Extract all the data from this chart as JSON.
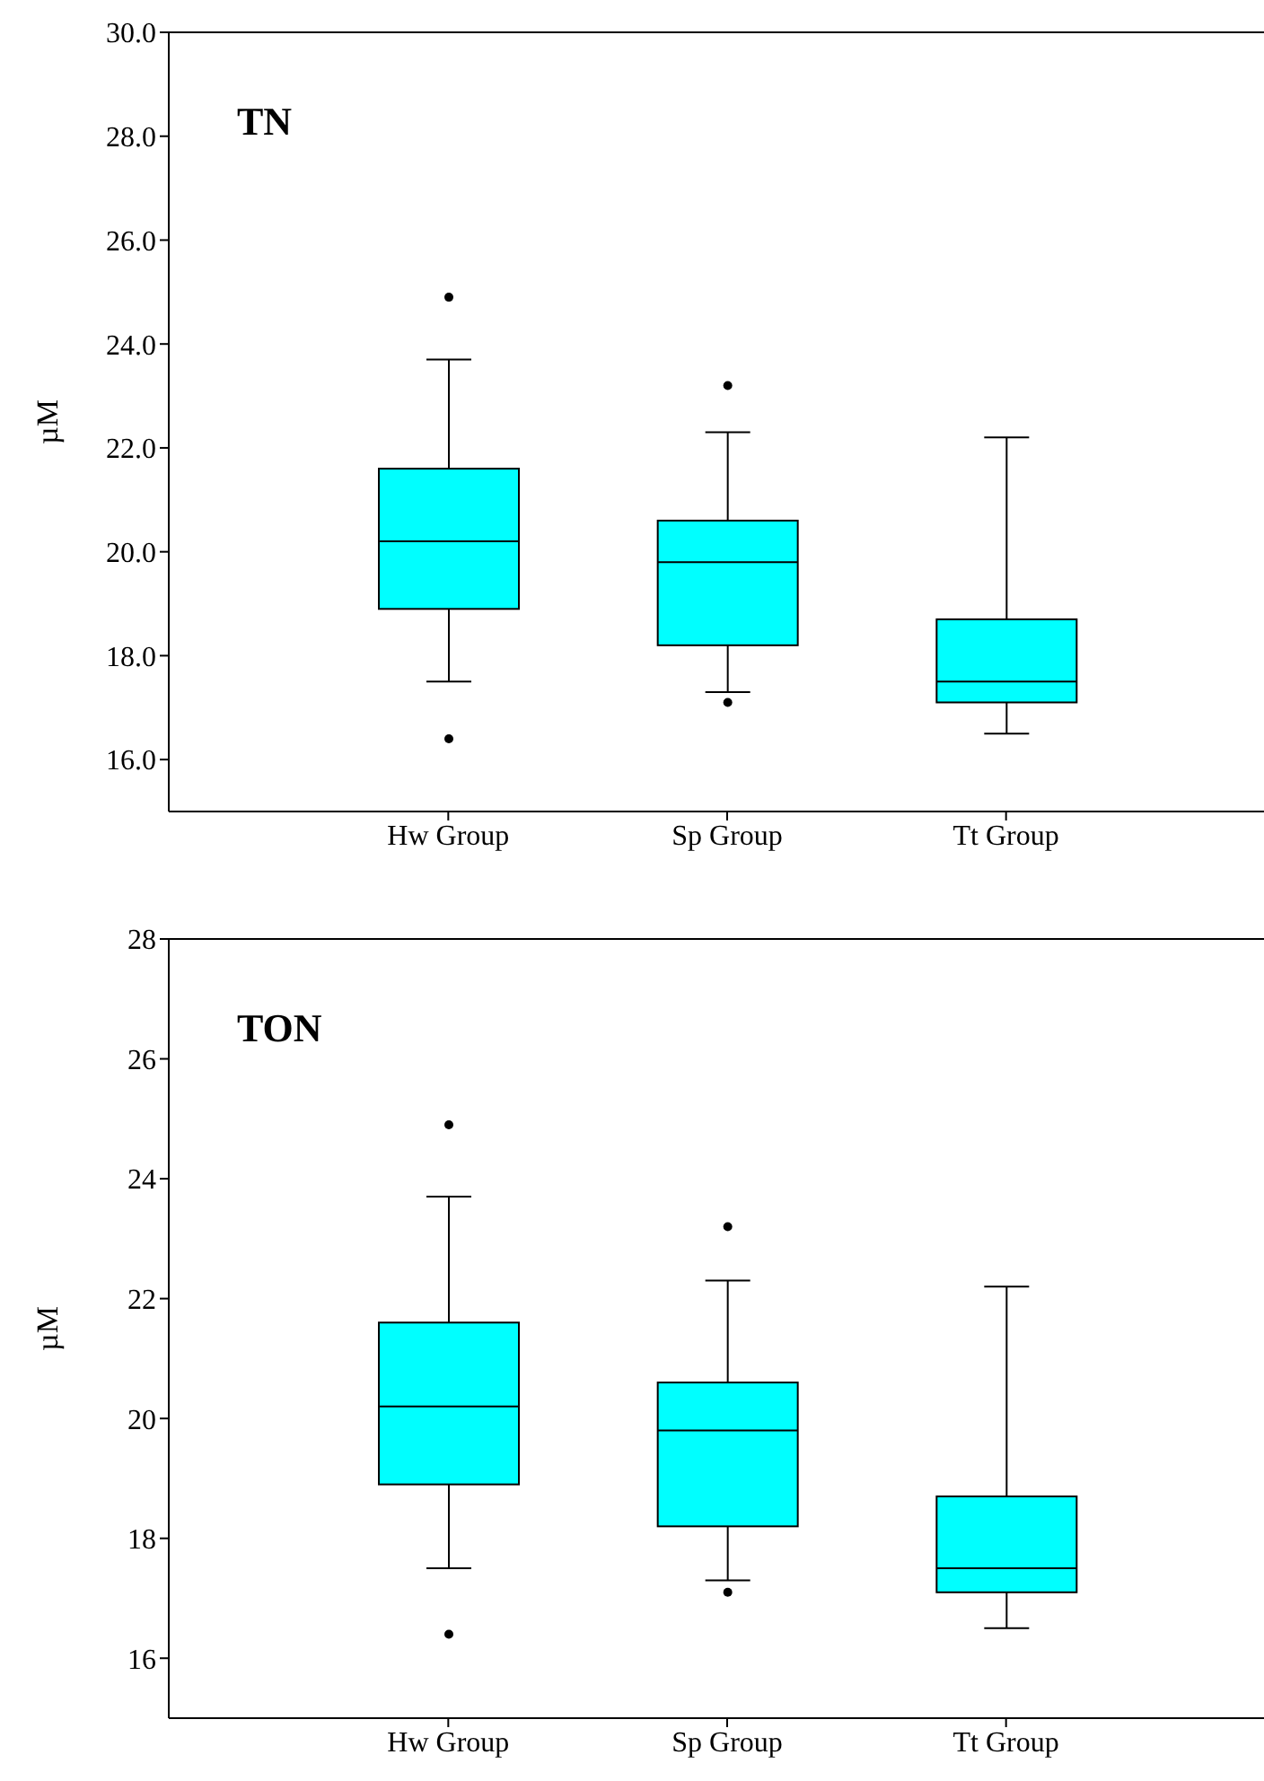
{
  "chart_data": [
    {
      "type": "box",
      "title": "TN",
      "ylabel": "µM",
      "categories": [
        "Hw Group",
        "Sp Group",
        "Tt Group"
      ],
      "color": "#00ffff",
      "ylim": [
        15,
        30
      ],
      "yticks": [
        {
          "value": 16,
          "label": "16.0"
        },
        {
          "value": 18,
          "label": "18.0"
        },
        {
          "value": 20,
          "label": "20.0"
        },
        {
          "value": 22,
          "label": "22.0"
        },
        {
          "value": 24,
          "label": "24.0"
        },
        {
          "value": 26,
          "label": "26.0"
        },
        {
          "value": 28,
          "label": "28.0"
        },
        {
          "value": 30,
          "label": "30.0"
        }
      ],
      "grid": false,
      "legend": false,
      "boxes": [
        {
          "low": 17.5,
          "q1": 18.9,
          "median": 20.2,
          "q3": 21.6,
          "high": 23.7,
          "outliers": [
            24.9,
            16.4
          ]
        },
        {
          "low": 17.3,
          "q1": 18.2,
          "median": 19.8,
          "q3": 20.6,
          "high": 22.3,
          "outliers": [
            23.2,
            17.1
          ]
        },
        {
          "low": 16.5,
          "q1": 17.1,
          "median": 17.5,
          "q3": 18.7,
          "high": 22.2
        }
      ]
    },
    {
      "type": "box",
      "title": "TON",
      "ylabel": "µM",
      "categories": [
        "Hw Group",
        "Sp Group",
        "Tt Group"
      ],
      "color": "#00ffff",
      "ylim": [
        15,
        28
      ],
      "yticks": [
        16,
        18,
        20,
        22,
        24,
        26,
        28
      ],
      "grid": false,
      "legend": false,
      "boxes": [
        {
          "low": 17.5,
          "q1": 18.9,
          "median": 20.2,
          "q3": 21.6,
          "high": 23.7,
          "outliers": [
            24.9,
            16.4
          ]
        },
        {
          "low": 17.3,
          "q1": 18.2,
          "median": 19.8,
          "q3": 20.6,
          "high": 22.3,
          "outliers": [
            23.2,
            17.1
          ]
        },
        {
          "low": 16.5,
          "q1": 17.1,
          "median": 17.5,
          "q3": 18.7,
          "high": 22.2
        }
      ]
    }
  ]
}
